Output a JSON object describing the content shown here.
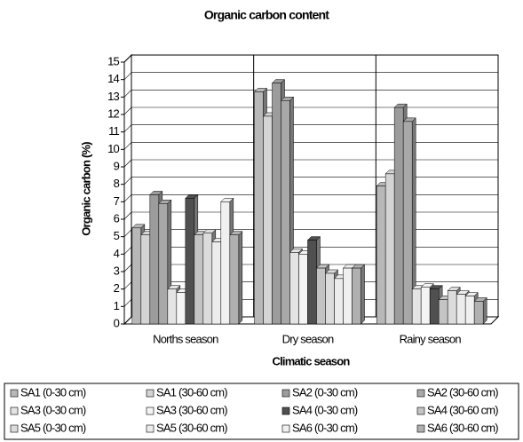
{
  "chart_data": {
    "type": "bar3d",
    "title": "Organic carbon content",
    "x_label": "Climatic season",
    "y_label": "Organic carbon (%)",
    "categories": [
      "Norths season",
      "Dry season",
      "Rainy season"
    ],
    "ylim": [
      0,
      15
    ],
    "yticks": [
      0,
      1,
      2,
      3,
      4,
      5,
      6,
      7,
      8,
      9,
      10,
      11,
      12,
      13,
      14,
      15
    ],
    "grid": true,
    "series": [
      {
        "name": "SA1 (0-30 cm)",
        "color": "#b8b8b8",
        "values": [
          5.5,
          13.3,
          7.9
        ]
      },
      {
        "name": "SA1 (30-60 cm)",
        "color": "#d4d4d4",
        "values": [
          5.1,
          11.9,
          8.6
        ]
      },
      {
        "name": "SA2 (0-30 cm)",
        "color": "#9c9c9c",
        "values": [
          7.4,
          13.8,
          12.4
        ]
      },
      {
        "name": "SA2 (30-60 cm)",
        "color": "#a8a8a8",
        "values": [
          6.9,
          12.8,
          11.6
        ]
      },
      {
        "name": "SA3 (0-30 cm)",
        "color": "#e4e4e4",
        "values": [
          2.0,
          4.1,
          2.0
        ]
      },
      {
        "name": "SA3 (30-60 cm)",
        "color": "#f4f4f4",
        "values": [
          1.8,
          4.0,
          2.1
        ]
      },
      {
        "name": "SA4 (0-30 cm)",
        "color": "#505050",
        "values": [
          7.2,
          4.8,
          2.0
        ]
      },
      {
        "name": "SA4 (30-60 cm)",
        "color": "#c4c4c4",
        "values": [
          5.1,
          3.2,
          1.4
        ]
      },
      {
        "name": "SA5 (0-30 cm)",
        "color": "#dcdcdc",
        "values": [
          5.2,
          2.9,
          1.9
        ]
      },
      {
        "name": "SA5 (30-60 cm)",
        "color": "#ececec",
        "values": [
          4.7,
          2.6,
          1.7
        ]
      },
      {
        "name": "SA6 (0-30 cm)",
        "color": "#f0f0f0",
        "values": [
          7.0,
          3.2,
          1.6
        ]
      },
      {
        "name": "SA6 (30-60 cm)",
        "color": "#b0b0b0",
        "values": [
          5.1,
          3.2,
          1.3
        ]
      }
    ]
  }
}
